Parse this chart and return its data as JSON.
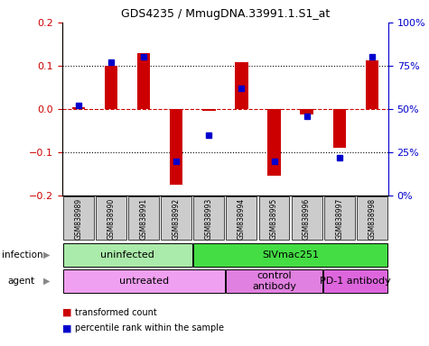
{
  "title": "GDS4235 / MmugDNA.33991.1.S1_at",
  "samples": [
    "GSM838989",
    "GSM838990",
    "GSM838991",
    "GSM838992",
    "GSM838993",
    "GSM838994",
    "GSM838995",
    "GSM838996",
    "GSM838997",
    "GSM838998"
  ],
  "transformed_counts": [
    0.005,
    0.1,
    0.13,
    -0.175,
    -0.005,
    0.108,
    -0.155,
    -0.012,
    -0.09,
    0.113
  ],
  "percentile_ranks": [
    52,
    77,
    80,
    20,
    35,
    62,
    20,
    46,
    22,
    80
  ],
  "ylim_left": [
    -0.2,
    0.2
  ],
  "ylim_right": [
    0,
    100
  ],
  "yticks_left": [
    -0.2,
    -0.1,
    0.0,
    0.1,
    0.2
  ],
  "yticks_right": [
    0,
    25,
    50,
    75,
    100
  ],
  "bar_color": "#cc0000",
  "dot_color": "#0000cc",
  "zero_line_color": "#cc0000",
  "left_axis_color": "#cc0000",
  "right_axis_color": "#0000cc",
  "infection_groups": [
    {
      "label": "uninfected",
      "start": 0,
      "end": 4,
      "color": "#aaeaaa"
    },
    {
      "label": "SIVmac251",
      "start": 4,
      "end": 10,
      "color": "#44dd44"
    }
  ],
  "agent_groups": [
    {
      "label": "untreated",
      "start": 0,
      "end": 5,
      "color": "#f0a0f0"
    },
    {
      "label": "control\nantibody",
      "start": 5,
      "end": 8,
      "color": "#e080e0"
    },
    {
      "label": "PD-1 antibody",
      "start": 8,
      "end": 10,
      "color": "#dd66dd"
    }
  ],
  "legend_items": [
    {
      "color": "#cc0000",
      "label": "transformed count"
    },
    {
      "color": "#0000cc",
      "label": "percentile rank within the sample"
    }
  ],
  "infection_label": "infection",
  "agent_label": "agent",
  "sample_box_color": "#cccccc",
  "plot_bg": "#ffffff",
  "background_color": "#ffffff"
}
